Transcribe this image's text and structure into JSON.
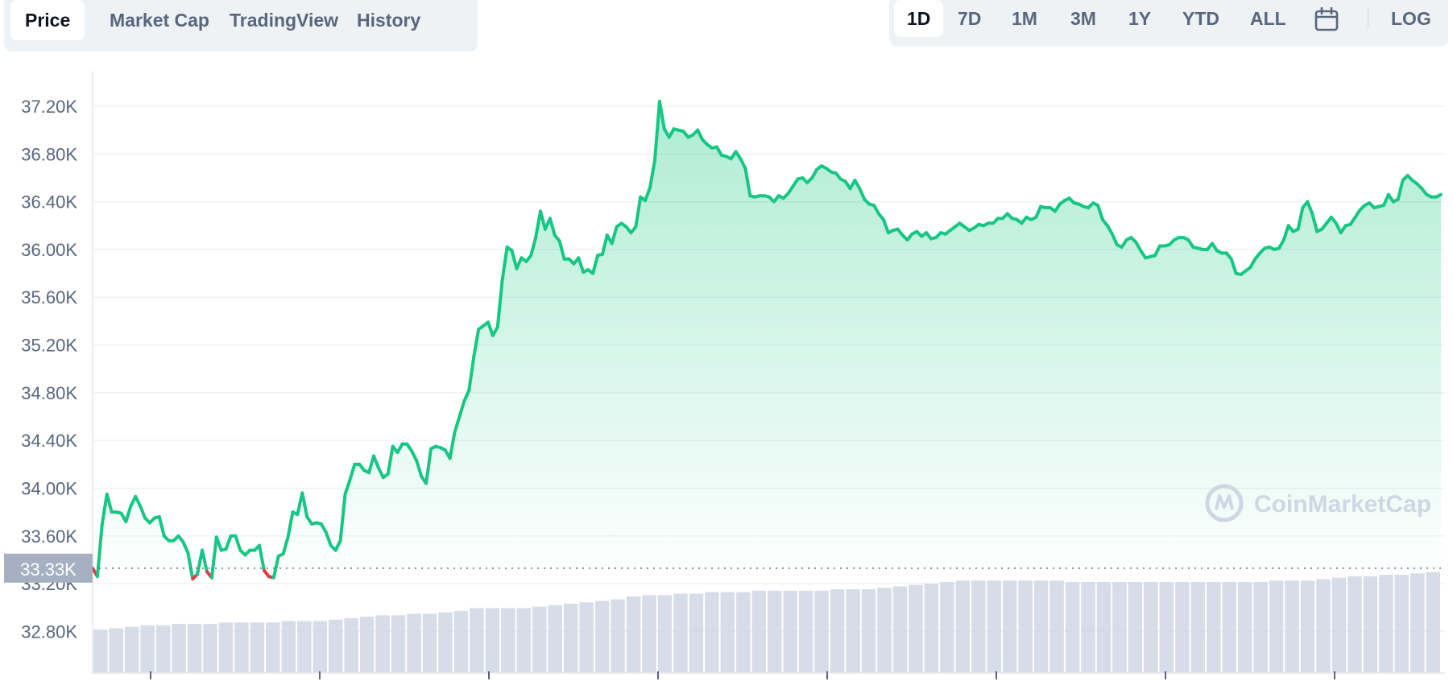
{
  "tabs": [
    {
      "label": "Price",
      "active": true
    },
    {
      "label": "Market Cap",
      "active": false
    },
    {
      "label": "TradingView",
      "active": false
    },
    {
      "label": "History",
      "active": false
    }
  ],
  "ranges": [
    {
      "label": "1D",
      "active": true
    },
    {
      "label": "7D",
      "active": false
    },
    {
      "label": "1M",
      "active": false
    },
    {
      "label": "3M",
      "active": false
    },
    {
      "label": "1Y",
      "active": false
    },
    {
      "label": "YTD",
      "active": false
    },
    {
      "label": "ALL",
      "active": false
    }
  ],
  "calendar_icon": "calendar-icon",
  "log_label": "LOG",
  "watermark": "CoinMarketCap",
  "colors": {
    "up": "#16c784",
    "down": "#ea3943",
    "grid": "#eff2f5",
    "axis_text": "#58667e",
    "volume": "#cfd6e4",
    "current_price_bg": "#a6b0c3"
  },
  "chart_data": {
    "type": "line",
    "ylim": [
      32600,
      37400
    ],
    "yticks": [
      32800,
      33200,
      33600,
      34000,
      34400,
      34800,
      35200,
      35600,
      36000,
      36400,
      36800,
      37200
    ],
    "ytick_labels": [
      "32.80K",
      "33.20K",
      "33.60K",
      "34.00K",
      "34.40K",
      "34.80K",
      "35.20K",
      "35.60K",
      "36.00K",
      "36.40K",
      "36.80K",
      "37.20K"
    ],
    "baseline": 33330,
    "baseline_label": "33.33K",
    "series": [
      {
        "values": [
          33330,
          33260,
          33700,
          33950,
          33800,
          33800,
          33790,
          33720,
          33850,
          33930,
          33850,
          33750,
          33710,
          33750,
          33760,
          33600,
          33560,
          33560,
          33600,
          33550,
          33460,
          33240,
          33280,
          33480,
          33300,
          33250,
          33590,
          33480,
          33490,
          33600,
          33600,
          33480,
          33440,
          33480,
          33480,
          33520,
          33310,
          33260,
          33250,
          33430,
          33450,
          33590,
          33800,
          33780,
          33960,
          33760,
          33700,
          33710,
          33700,
          33630,
          33520,
          33480,
          33560,
          33950,
          34070,
          34200,
          34200,
          34150,
          34130,
          34270,
          34170,
          34090,
          34120,
          34350,
          34300,
          34370,
          34370,
          34310,
          34230,
          34100,
          34040,
          34330,
          34350,
          34340,
          34320,
          34250,
          34470,
          34600,
          34730,
          34820,
          35100,
          35330,
          35360,
          35390,
          35280,
          35350,
          35750,
          36020,
          35990,
          35840,
          35930,
          35900,
          35950,
          36100,
          36320,
          36170,
          36260,
          36120,
          36070,
          35920,
          35920,
          35880,
          35930,
          35810,
          35830,
          35800,
          35950,
          35960,
          36120,
          36050,
          36190,
          36220,
          36190,
          36140,
          36190,
          36440,
          36410,
          36520,
          36750,
          37240,
          37010,
          36940,
          37010,
          37000,
          36990,
          36940,
          36960,
          37000,
          36920,
          36880,
          36850,
          36860,
          36790,
          36780,
          36760,
          36820,
          36760,
          36680,
          36450,
          36440,
          36450,
          36450,
          36440,
          36400,
          36450,
          36430,
          36470,
          36530,
          36590,
          36600,
          36560,
          36600,
          36670,
          36700,
          36680,
          36650,
          36640,
          36590,
          36570,
          36510,
          36580,
          36510,
          36420,
          36380,
          36370,
          36300,
          36250,
          36140,
          36160,
          36170,
          36120,
          36080,
          36130,
          36150,
          36110,
          36140,
          36090,
          36100,
          36140,
          36130,
          36160,
          36190,
          36220,
          36190,
          36160,
          36180,
          36210,
          36200,
          36220,
          36220,
          36260,
          36260,
          36300,
          36260,
          36250,
          36220,
          36270,
          36250,
          36270,
          36360,
          36350,
          36350,
          36320,
          36380,
          36410,
          36430,
          36390,
          36380,
          36360,
          36350,
          36390,
          36370,
          36250,
          36200,
          36130,
          36040,
          36020,
          36080,
          36100,
          36060,
          35990,
          35930,
          35940,
          35950,
          36030,
          36030,
          36040,
          36080,
          36100,
          36100,
          36080,
          36020,
          36010,
          36000,
          36000,
          36050,
          35990,
          35970,
          35970,
          35920,
          35800,
          35790,
          35820,
          35850,
          35920,
          35970,
          36010,
          36020,
          36000,
          36010,
          36080,
          36200,
          36150,
          36170,
          36350,
          36400,
          36300,
          36150,
          36170,
          36220,
          36270,
          36220,
          36140,
          36200,
          36210,
          36270,
          36330,
          36370,
          36390,
          36350,
          36360,
          36370,
          36460,
          36400,
          36420,
          36580,
          36620,
          36580,
          36550,
          36510,
          36460,
          36440,
          36440,
          36460
        ]
      }
    ],
    "volume_fraction": [
      0.3,
      0.31,
      0.32,
      0.33,
      0.33,
      0.34,
      0.34,
      0.34,
      0.35,
      0.35,
      0.35,
      0.35,
      0.36,
      0.36,
      0.36,
      0.37,
      0.38,
      0.39,
      0.4,
      0.4,
      0.41,
      0.41,
      0.42,
      0.43,
      0.45,
      0.45,
      0.45,
      0.45,
      0.46,
      0.47,
      0.48,
      0.49,
      0.5,
      0.51,
      0.53,
      0.54,
      0.54,
      0.55,
      0.55,
      0.56,
      0.56,
      0.56,
      0.57,
      0.57,
      0.57,
      0.57,
      0.57,
      0.58,
      0.58,
      0.58,
      0.59,
      0.6,
      0.61,
      0.62,
      0.63,
      0.64,
      0.64,
      0.64,
      0.64,
      0.64,
      0.64,
      0.64,
      0.63,
      0.63,
      0.63,
      0.63,
      0.63,
      0.63,
      0.63,
      0.63,
      0.63,
      0.63,
      0.63,
      0.63,
      0.63,
      0.64,
      0.64,
      0.64,
      0.65,
      0.66,
      0.67,
      0.67,
      0.68,
      0.68,
      0.69,
      0.7
    ],
    "xlim_fraction": [
      0,
      1
    ]
  }
}
